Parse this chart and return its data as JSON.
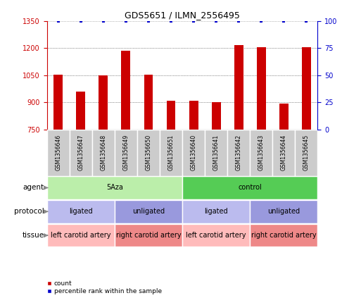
{
  "title": "GDS5651 / ILMN_2556495",
  "samples": [
    "GSM1356646",
    "GSM1356647",
    "GSM1356648",
    "GSM1356649",
    "GSM1356650",
    "GSM1356651",
    "GSM1356640",
    "GSM1356641",
    "GSM1356642",
    "GSM1356643",
    "GSM1356644",
    "GSM1356645"
  ],
  "counts": [
    1055,
    960,
    1050,
    1185,
    1055,
    910,
    910,
    900,
    1215,
    1205,
    895,
    1205
  ],
  "percentile": [
    100,
    100,
    100,
    100,
    100,
    100,
    100,
    100,
    100,
    100,
    100,
    100
  ],
  "ylim_left": [
    750,
    1350
  ],
  "ylim_right": [
    0,
    100
  ],
  "yticks_left": [
    750,
    900,
    1050,
    1200,
    1350
  ],
  "yticks_right": [
    0,
    25,
    50,
    75,
    100
  ],
  "bar_color": "#cc0000",
  "dot_color": "#0000cc",
  "sample_bg": "#cccccc",
  "agent_groups": [
    {
      "label": "5Aza",
      "start": 0,
      "end": 6,
      "color": "#bbeeaa"
    },
    {
      "label": "control",
      "start": 6,
      "end": 12,
      "color": "#55cc55"
    }
  ],
  "protocol_groups": [
    {
      "label": "ligated",
      "start": 0,
      "end": 3,
      "color": "#bbbbee"
    },
    {
      "label": "unligated",
      "start": 3,
      "end": 6,
      "color": "#9999dd"
    },
    {
      "label": "ligated",
      "start": 6,
      "end": 9,
      "color": "#bbbbee"
    },
    {
      "label": "unligated",
      "start": 9,
      "end": 12,
      "color": "#9999dd"
    }
  ],
  "tissue_groups": [
    {
      "label": "left carotid artery",
      "start": 0,
      "end": 3,
      "color": "#ffbbbb"
    },
    {
      "label": "right carotid artery",
      "start": 3,
      "end": 6,
      "color": "#ee8888"
    },
    {
      "label": "left carotid artery",
      "start": 6,
      "end": 9,
      "color": "#ffbbbb"
    },
    {
      "label": "right carotid artery",
      "start": 9,
      "end": 12,
      "color": "#ee8888"
    }
  ],
  "row_labels": [
    "agent",
    "protocol",
    "tissue"
  ],
  "legend_count_color": "#cc0000",
  "legend_pct_color": "#0000cc"
}
